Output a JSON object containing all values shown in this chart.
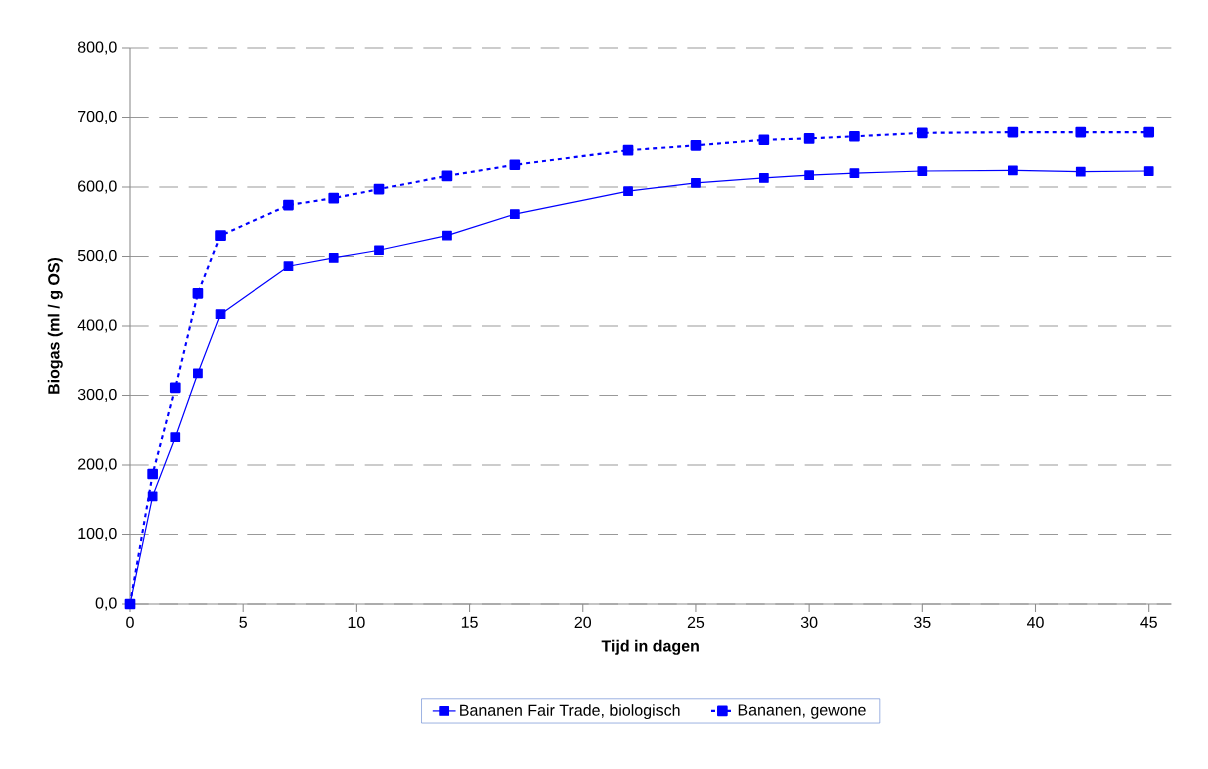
{
  "chart_data": {
    "type": "line",
    "xlabel": "Tijd in dagen",
    "ylabel": "Biogas (ml / g OS)",
    "x": [
      0,
      1,
      2,
      3,
      4,
      7,
      9,
      11,
      14,
      17,
      22,
      25,
      28,
      30,
      32,
      35,
      39,
      42,
      45
    ],
    "series": [
      {
        "name": "Bananen Fair Trade, biologisch",
        "color": "#0000ff",
        "line_style": "solid",
        "values": [
          0,
          155,
          240,
          332,
          417,
          486,
          498,
          509,
          530,
          561,
          594,
          606,
          613,
          617,
          620,
          623,
          624,
          622,
          623
        ]
      },
      {
        "name": "Bananen, gewone",
        "color": "#0000ff",
        "line_style": "dotted",
        "values": [
          0,
          187,
          311,
          447,
          530,
          574,
          584,
          597,
          616,
          632,
          653,
          660,
          668,
          670,
          673,
          678,
          679,
          679,
          679
        ]
      }
    ],
    "xlim": [
      0,
      46
    ],
    "xticks": [
      0,
      5,
      10,
      15,
      20,
      25,
      30,
      35,
      40,
      45
    ],
    "ylim": [
      0,
      800
    ],
    "yticks": [
      {
        "value": 0,
        "label": "0,0"
      },
      {
        "value": 100,
        "label": "100,0"
      },
      {
        "value": 200,
        "label": "200,0"
      },
      {
        "value": 300,
        "label": "300,0"
      },
      {
        "value": 400,
        "label": "400,0"
      },
      {
        "value": 500,
        "label": "500,0"
      },
      {
        "value": 600,
        "label": "600,0"
      },
      {
        "value": 700,
        "label": "700,0"
      },
      {
        "value": 800,
        "label": "800,0"
      }
    ],
    "grid": "y",
    "legend": "bottom",
    "marker": "square"
  }
}
